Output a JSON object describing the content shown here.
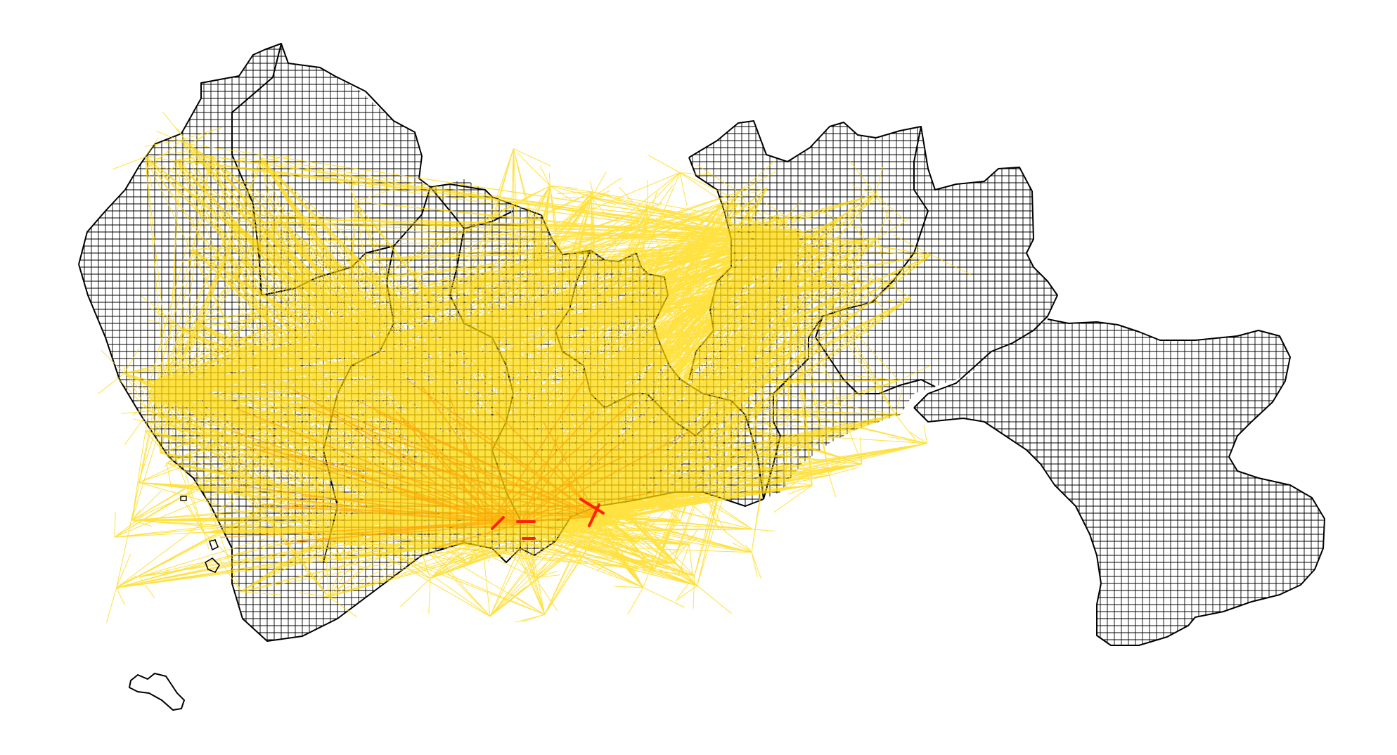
{
  "map": {
    "type": "od-flow-map-over-grid",
    "background_color": "#ffffff",
    "grid": {
      "stroke_color": "#000000",
      "fill": "none",
      "shown": true
    },
    "boundaries": {
      "stroke_color": "#000000"
    },
    "flows": {
      "low_color": "#ffd700",
      "mid_color": "#ffa500",
      "high_color": "#ff2200",
      "description_levels": [
        "low",
        "medium",
        "high"
      ]
    },
    "text_labels": []
  }
}
